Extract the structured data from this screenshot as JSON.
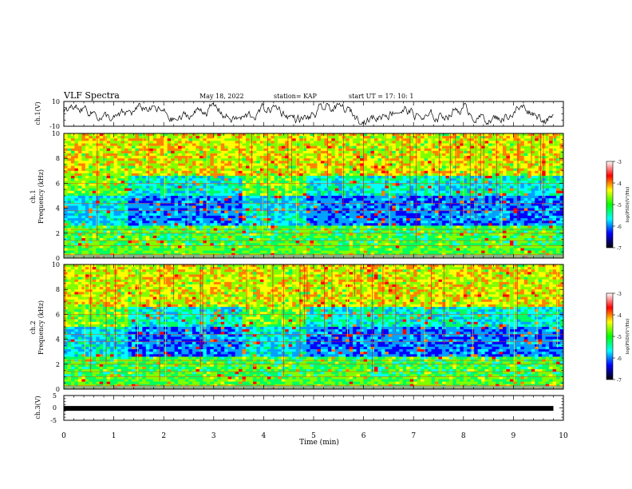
{
  "header": {
    "title": "VLF Spectra",
    "date": "May 18, 2022",
    "station": "station= KAP",
    "start": "start  UT  =   17: 10: 1"
  },
  "colorbar": {
    "label": "log(PSD)(V²/Hz)",
    "ticks": [
      "-3",
      "-4",
      "-5",
      "-6",
      "-7"
    ],
    "stops": [
      "#ffffff",
      "#ff0000",
      "#ffff00",
      "#00ff00",
      "#00ffff",
      "#0000ff",
      "#000000"
    ]
  },
  "chart_data": [
    {
      "type": "line",
      "name": "waveform-ch1",
      "ylabel": "ch.1(V)",
      "ylim": [
        -10,
        10
      ],
      "yticks": [
        "10",
        "-10"
      ],
      "xlim": [
        0,
        10
      ],
      "x_unit": "min",
      "note_level": 0
    },
    {
      "type": "heatmap",
      "name": "spectrogram-ch1",
      "ylabel": "ch.1\nFrequency  (kHz)",
      "ylabel_lines": [
        "ch.1",
        "Frequency  (kHz)"
      ],
      "ylim": [
        0,
        10
      ],
      "yticks": [
        "0",
        "2",
        "4",
        "6",
        "8",
        "10"
      ],
      "xlim": [
        0,
        10
      ],
      "segments_min": [
        0,
        1.3,
        3.6,
        4.85,
        10
      ],
      "z_range": [
        -7,
        -3
      ]
    },
    {
      "type": "heatmap",
      "name": "spectrogram-ch2",
      "ylabel_lines": [
        "ch.2",
        "Frequency  (kHz)"
      ],
      "ylim": [
        0,
        10
      ],
      "yticks": [
        "0",
        "2",
        "4",
        "6",
        "8",
        "10"
      ],
      "xlim": [
        0,
        10
      ],
      "segments_min": [
        0,
        1.3,
        3.6,
        4.85,
        10
      ],
      "z_range": [
        -7,
        -3
      ]
    },
    {
      "type": "line",
      "name": "waveform-ch3",
      "ylabel": "ch.3(V)",
      "ylim": [
        -5,
        5
      ],
      "yticks": [
        "5",
        "0",
        "-5"
      ],
      "xlim": [
        0,
        10
      ],
      "level": -0.2
    }
  ],
  "xaxis": {
    "label": "Time  (min)",
    "ticks": [
      "0",
      "1",
      "2",
      "3",
      "4",
      "5",
      "6",
      "7",
      "8",
      "9",
      "10"
    ]
  }
}
